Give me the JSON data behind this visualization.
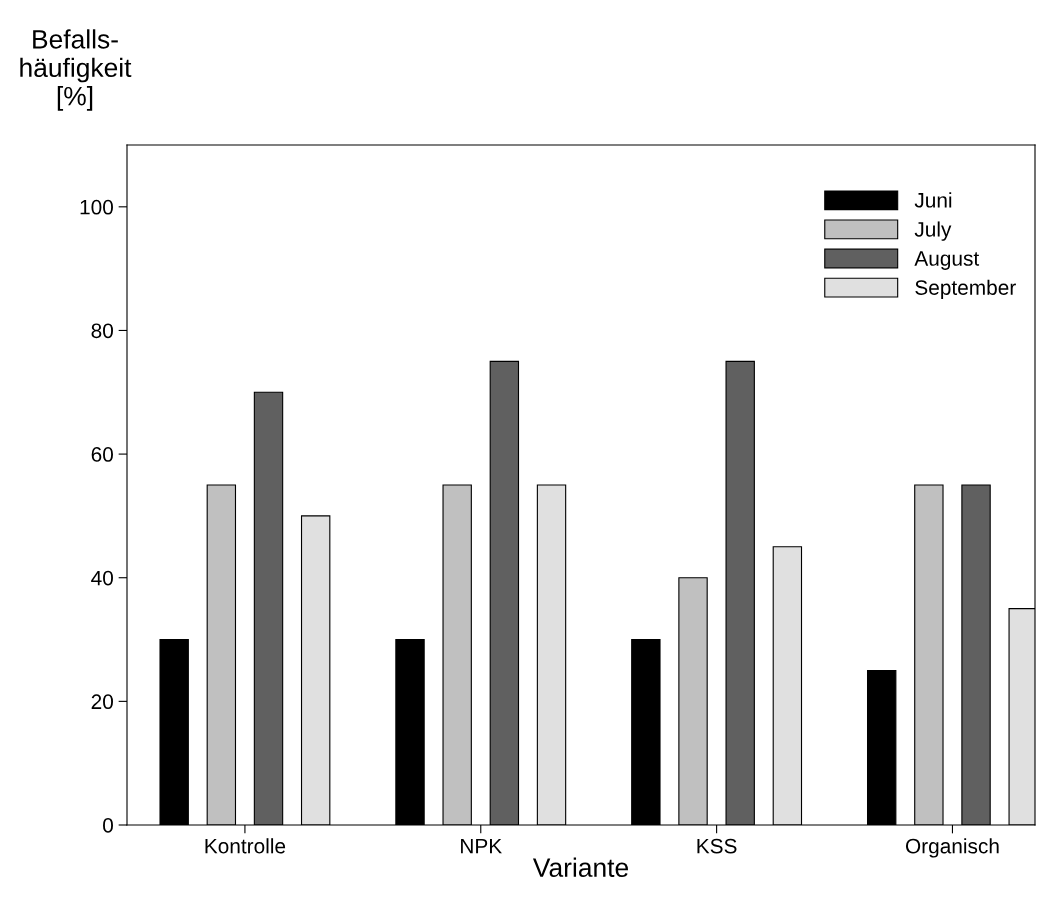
{
  "chart_data": {
    "type": "bar",
    "xlabel": "Variante",
    "ylabel": "Befalls-\nhäufigkeit\n[%]",
    "categories": [
      "Kontrolle",
      "NPK",
      "KSS",
      "Organisch"
    ],
    "series": [
      {
        "name": "Juni",
        "color": "#000000",
        "values": [
          30,
          30,
          30,
          25
        ]
      },
      {
        "name": "July",
        "color": "#c0c0c0",
        "values": [
          55,
          55,
          40,
          55
        ]
      },
      {
        "name": "August",
        "color": "#606060",
        "values": [
          70,
          75,
          75,
          55
        ]
      },
      {
        "name": "September",
        "color": "#e0e0e0",
        "values": [
          50,
          55,
          45,
          35
        ]
      }
    ],
    "ylim": [
      0,
      110
    ],
    "yticks": [
      0,
      20,
      40,
      60,
      80,
      100
    ],
    "grid": false,
    "legend": "top right"
  }
}
